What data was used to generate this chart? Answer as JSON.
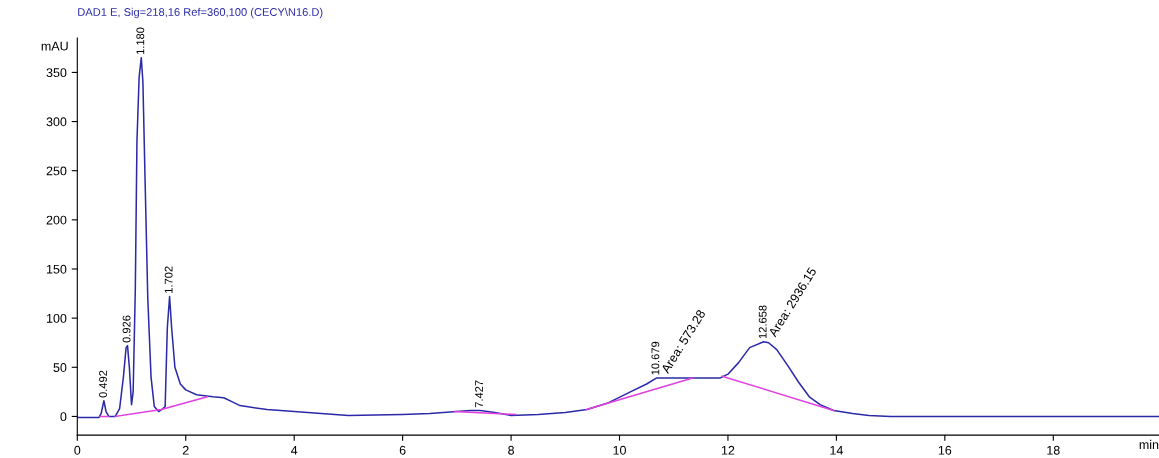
{
  "chart_data": {
    "type": "line",
    "title": "DAD1 E, Sig=218,16 Ref=360,100 (CECY\\N16.D)",
    "xlabel": "min",
    "ylabel": "mAU",
    "xlim": [
      0,
      19.95
    ],
    "ylim": [
      -19,
      385
    ],
    "xticks": [
      0,
      2,
      4,
      6,
      8,
      10,
      12,
      14,
      16,
      18
    ],
    "yticks": [
      0,
      50,
      100,
      150,
      200,
      250,
      300,
      350
    ],
    "grid": false,
    "legend": false,
    "marker": "none",
    "line_style": "solid",
    "series": [
      {
        "color": "#2a2aa8",
        "x": [
          0,
          0.4,
          0.44,
          0.49,
          0.53,
          0.58,
          0.7,
          0.78,
          0.85,
          0.9,
          0.926,
          0.96,
          1.0,
          1.03,
          1.07,
          1.1,
          1.14,
          1.18,
          1.21,
          1.25,
          1.3,
          1.36,
          1.42,
          1.5,
          1.58,
          1.62,
          1.66,
          1.702,
          1.74,
          1.8,
          1.9,
          2.0,
          2.2,
          2.5,
          2.7,
          2.85,
          3.0,
          3.5,
          4.0,
          4.5,
          5.0,
          6.0,
          6.5,
          7.0,
          7.25,
          7.427,
          7.7,
          8.0,
          8.5,
          9.0,
          9.4,
          9.8,
          10.2,
          10.5,
          10.679,
          11.3,
          11.85,
          12.0,
          12.2,
          12.4,
          12.658,
          12.75,
          12.9,
          13.1,
          13.3,
          13.5,
          13.7,
          13.95,
          14.3,
          14.6,
          15.0,
          19.95
        ],
        "values": [
          -1,
          -1,
          3,
          16,
          5,
          0,
          0,
          8,
          40,
          70,
          72,
          50,
          12,
          25,
          130,
          280,
          345,
          365,
          340,
          240,
          120,
          40,
          10,
          5,
          8,
          10,
          90,
          122,
          90,
          50,
          33,
          27,
          22,
          20,
          19,
          15,
          11,
          7,
          5,
          3,
          1,
          2,
          3,
          5,
          6,
          6,
          4,
          1,
          2,
          4,
          7,
          14,
          25,
          33,
          39,
          39,
          39,
          43,
          55,
          70,
          76,
          75,
          68,
          52,
          35,
          20,
          12,
          6,
          3,
          1,
          0,
          0
        ]
      },
      {
        "color": "#e040e0",
        "x": [
          0.42,
          0.58,
          0.6,
          0.7,
          1.55,
          2.4,
          2.5,
          6.96,
          8.08,
          8.2,
          9.39,
          11.35,
          11.6,
          11.89,
          13.95
        ],
        "values": [
          0,
          0,
          null,
          0,
          7,
          20,
          null,
          5,
          2,
          null,
          7,
          39,
          null,
          41,
          6
        ]
      }
    ],
    "annotations": [
      {
        "text": "0.492",
        "x": 0.492,
        "y": 16
      },
      {
        "text": "0.926",
        "x": 0.926,
        "y": 72
      },
      {
        "text": "1.180",
        "x": 1.18,
        "y": 365
      },
      {
        "text": "1.702",
        "x": 1.702,
        "y": 122
      },
      {
        "text": "7.427",
        "x": 7.427,
        "y": 6
      },
      {
        "text": "10.679",
        "x": 10.679,
        "y": 39
      },
      {
        "text": "Area: 573.28",
        "x": 10.679,
        "y": 39
      },
      {
        "text": "12.658",
        "x": 12.658,
        "y": 76
      },
      {
        "text": "Area: 2936.15",
        "x": 12.658,
        "y": 76
      }
    ]
  }
}
